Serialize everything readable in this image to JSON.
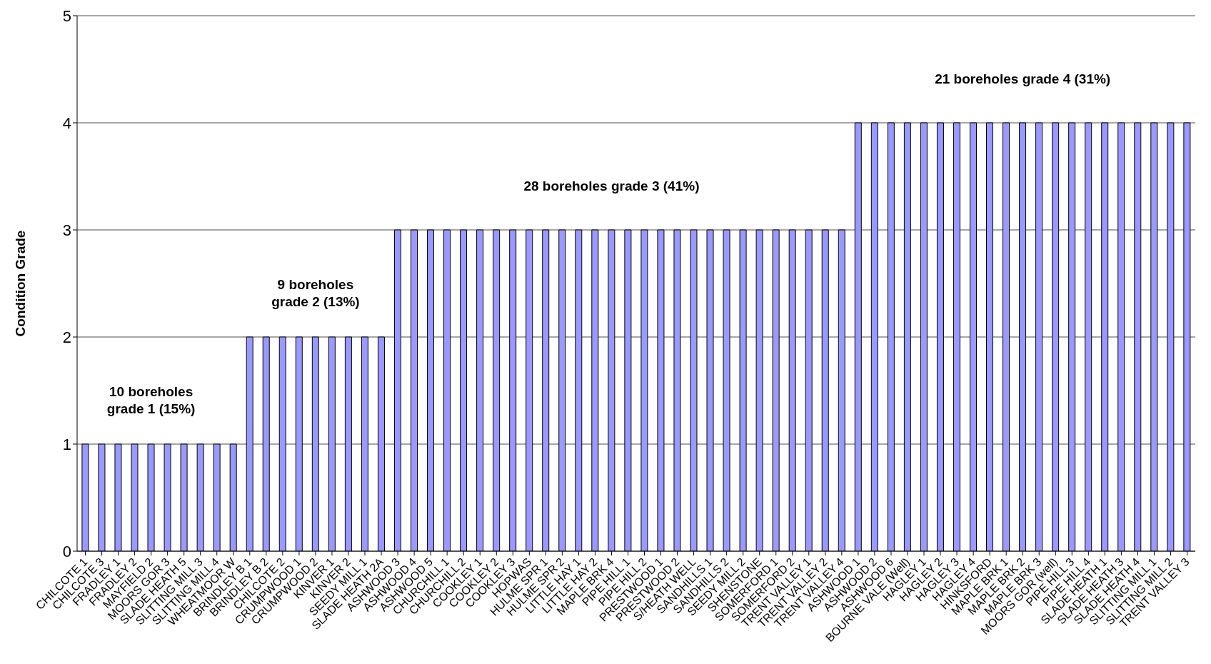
{
  "chart_data": {
    "type": "bar",
    "ylabel": "Condition Grade",
    "categories": [
      "CHILCOTE 1",
      "CHILCOTE 3",
      "FRADLEY 1",
      "FRADLEY 2",
      "MAYFIELD 2",
      "MOORS GOR 3",
      "SLADE HEATH 5",
      "SLITTING MILL 3",
      "SLITTING MILL 4",
      "WHEATMOOR W",
      "BRINDLEY B 1",
      "BRINDLEY B 2",
      "CHILCOTE 2",
      "CRUMPWOOD 1",
      "CRUMPWOOD 2",
      "KINVER 1",
      "KINVER 2",
      "SEEDY MILL 1",
      "SLADE HEATH 2A",
      "ASHWOOD 3",
      "ASHWOOD 4",
      "ASHWOOD 5",
      "CHURCHILL 1",
      "CHURCHILL 2",
      "COOKLEY 1",
      "COOKLEY 2",
      "COOKLEY 3",
      "HOPWAS",
      "HULME SPR 1",
      "HULME SPR 2",
      "LITTLE HAY 1",
      "LITTLE HAY 2",
      "MAPLE BRK 4",
      "PIPE HILL 1",
      "PIPE HILL 2",
      "PRESTWOOD 1",
      "PRESTWOOD 2",
      "S/HEATH WELL",
      "SANDHILLS 1",
      "SANDHILLS 2",
      "SEEDY MILL 2",
      "SHENSTONE",
      "SOMERFORD 1",
      "SOMERFORD 2",
      "TRENT VALLEY 1",
      "TRENT VALLEY 2",
      "TRENT VALLEY 4",
      "ASHWOOD 1",
      "ASHWOOD 2",
      "ASHWOOD 6",
      "BOURNE VALE (Well)",
      "HAGLEY 1",
      "HAGLEY 2",
      "HAGLEY 3",
      "HAGLEY 4",
      "HINKSFORD",
      "MAPLE BRK 1",
      "MAPLE BRK 2",
      "MAPLE BRK 3",
      "MOORS GOR (well)",
      "PIPE HILL 3",
      "PIPE HILL 4",
      "SLADE HEATH 1",
      "SLADE HEATH 3",
      "SLADE HEATH 4",
      "SLITTING MILL 1",
      "SLITTING MILL 2",
      "TRENT VALLEY 3"
    ],
    "values": [
      1,
      1,
      1,
      1,
      1,
      1,
      1,
      1,
      1,
      1,
      2,
      2,
      2,
      2,
      2,
      2,
      2,
      2,
      2,
      3,
      3,
      3,
      3,
      3,
      3,
      3,
      3,
      3,
      3,
      3,
      3,
      3,
      3,
      3,
      3,
      3,
      3,
      3,
      3,
      3,
      3,
      3,
      3,
      3,
      3,
      3,
      3,
      4,
      4,
      4,
      4,
      4,
      4,
      4,
      4,
      4,
      4,
      4,
      4,
      4,
      4,
      4,
      4,
      4,
      4,
      4,
      4,
      4
    ],
    "color": "#9999ff",
    "ylim": [
      0,
      5
    ],
    "yticks": [
      0,
      1,
      2,
      3,
      4,
      5
    ],
    "grid": "y",
    "annotations": [
      "10 boreholes\ngrade 1 (15%)",
      "9 boreholes\ngrade 2 (13%)",
      "28 boreholes grade 3 (41%)",
      "21 boreholes grade 4 (31%)"
    ]
  }
}
